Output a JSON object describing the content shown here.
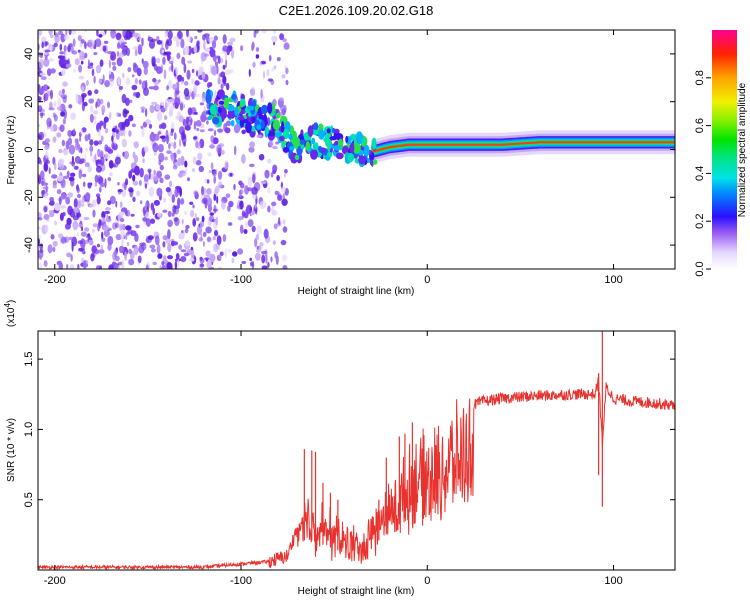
{
  "title": "C2E1.2026.109.20.02.G18",
  "chart_data": [
    {
      "type": "heatmap",
      "xlabel": "Height of straight line (km)",
      "ylabel": "Frequency (Hz)",
      "xlim": [
        -209,
        133
      ],
      "ylim": [
        -50,
        50
      ],
      "xticks": [
        -200,
        -100,
        0,
        100
      ],
      "xtick_labels": [
        "-200",
        "-100",
        "0",
        "100"
      ],
      "yticks": [
        -40,
        -20,
        0,
        20,
        40
      ],
      "ytick_labels": [
        "-40",
        "-20",
        "0",
        "20",
        "40"
      ],
      "ridge": {
        "x": [
          -115,
          -100,
          -90,
          -80,
          -75,
          -70,
          -60,
          -50,
          -40,
          -35,
          -30,
          -25,
          -20,
          -10,
          0,
          20,
          40,
          60,
          80,
          100,
          133
        ],
        "y": [
          18,
          16,
          14,
          10,
          4,
          1,
          4,
          2,
          1,
          0,
          -1,
          0,
          1,
          2,
          2,
          2,
          2,
          3,
          3,
          3,
          3
        ]
      },
      "noise_region_x": [
        -209,
        -80
      ],
      "colorbar": {
        "label": "Normalized spectral amplitude",
        "range": [
          0,
          1
        ],
        "ticks": [
          0.0,
          0.2,
          0.4,
          0.6,
          0.8
        ],
        "tick_labels": [
          "0.0",
          "0.2",
          "0.4",
          "0.6",
          "0.8"
        ]
      }
    },
    {
      "type": "line",
      "xlabel": "Height of straight line (km)",
      "ylabel": "SNR (10 * v/v)",
      "scale_note": "(x10",
      "scale_exp": "4",
      "scale_close": ")",
      "xlim": [
        -209,
        133
      ],
      "ylim": [
        0,
        1.7
      ],
      "xticks": [
        -200,
        -100,
        0,
        100
      ],
      "xtick_labels": [
        "-200",
        "-100",
        "0",
        "100"
      ],
      "yticks": [
        0.5,
        1.0,
        1.5
      ],
      "ytick_labels": [
        "0.5",
        "1.0",
        "1.5"
      ],
      "color": "#e8322e",
      "envelope": {
        "x": [
          -209,
          -120,
          -85,
          -75,
          -70,
          -65,
          -60,
          -55,
          -50,
          -45,
          -40,
          -35,
          -30,
          -25,
          -20,
          -15,
          -10,
          -5,
          0,
          5,
          10,
          15,
          20,
          30,
          40,
          60,
          80,
          90,
          92,
          94,
          96,
          100,
          110,
          120,
          133
        ],
        "y": [
          0.02,
          0.02,
          0.06,
          0.1,
          0.3,
          0.45,
          0.4,
          0.35,
          0.3,
          0.25,
          0.2,
          0.15,
          0.3,
          0.45,
          0.55,
          0.65,
          0.8,
          0.9,
          0.9,
          0.95,
          1.0,
          1.1,
          1.15,
          1.2,
          1.22,
          1.24,
          1.25,
          1.25,
          1.35,
          0.9,
          1.3,
          1.22,
          1.2,
          1.19,
          1.17
        ]
      },
      "spikes": {
        "x": [
          -66,
          -62,
          -60,
          -56,
          -52,
          -48,
          -30,
          -26,
          -22,
          -15,
          -12,
          -8,
          92,
          94,
          96
        ],
        "y": [
          0.86,
          0.85,
          0.84,
          0.62,
          0.55,
          0.5,
          0.35,
          0.5,
          0.8,
          0.95,
          0.97,
          1.05,
          1.4,
          1.7,
          0.65
        ]
      }
    }
  ]
}
